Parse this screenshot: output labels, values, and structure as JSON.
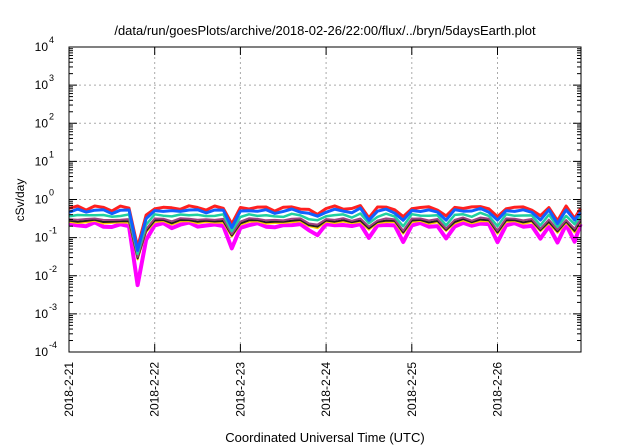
{
  "chart_data": {
    "type": "line",
    "title": "/data/run/goesPlots/archive/2018-02-26/22:00/flux/../bryn/5daysEarth.plot",
    "xlabel": "Coordinated Universal Time (UTC)",
    "ylabel": "cSv/day",
    "yscale": "log",
    "ylim": [
      0.0001,
      10000
    ],
    "xlim_days": [
      0,
      5.97
    ],
    "grid": true,
    "x_tick_labels": [
      "2018-2-21",
      "2018-2-22",
      "2018-2-23",
      "2018-2-24",
      "2018-2-25",
      "2018-2-26"
    ],
    "y_tick_exponents": [
      "-4",
      "-3",
      "-2",
      "-1",
      "0",
      "1",
      "2",
      "3",
      "4"
    ],
    "y_tick_base": "10",
    "x_start_days": 0,
    "x_step_days": 0.1,
    "shape": [
      1.0,
      1.05,
      0.95,
      1.1,
      1.0,
      0.9,
      1.05,
      1.0,
      0.1,
      0.6,
      1.0,
      1.05,
      0.95,
      1.0,
      1.1,
      1.0,
      0.95,
      1.05,
      1.0,
      0.4,
      0.95,
      1.0,
      1.05,
      1.0,
      0.9,
      1.0,
      1.05,
      1.0,
      0.85,
      0.7,
      1.0,
      1.05,
      1.0,
      0.95,
      1.1,
      0.6,
      1.0,
      1.05,
      0.95,
      0.55,
      1.0,
      1.05,
      1.0,
      0.95,
      0.6,
      1.0,
      1.05,
      1.0,
      1.1,
      1.0,
      0.55,
      1.0,
      1.05,
      1.0,
      0.95,
      0.6,
      1.0,
      0.5,
      1.05,
      0.55,
      1.0
    ],
    "series": [
      {
        "name": "magenta",
        "color": "#ff00ff",
        "level": 0.21,
        "dip_exponent": 1.6,
        "width": 4
      },
      {
        "name": "yellow",
        "color": "#ffd000",
        "level": 0.25,
        "dip_exponent": 1.0,
        "width": 2
      },
      {
        "name": "black",
        "color": "#202020",
        "level": 0.27,
        "dip_exponent": 1.0,
        "width": 2
      },
      {
        "name": "purple",
        "color": "#a04080",
        "level": 0.3,
        "dip_exponent": 1.0,
        "width": 2
      },
      {
        "name": "teal",
        "color": "#20d0a0",
        "level": 0.38,
        "dip_exponent": 1.0,
        "width": 2.5
      },
      {
        "name": "red",
        "color": "#ff2020",
        "level": 0.6,
        "dip_exponent": 1.0,
        "width": 3
      },
      {
        "name": "blue",
        "color": "#1060ff",
        "level": 0.5,
        "dip_exponent": 1.0,
        "width": 3
      }
    ]
  }
}
